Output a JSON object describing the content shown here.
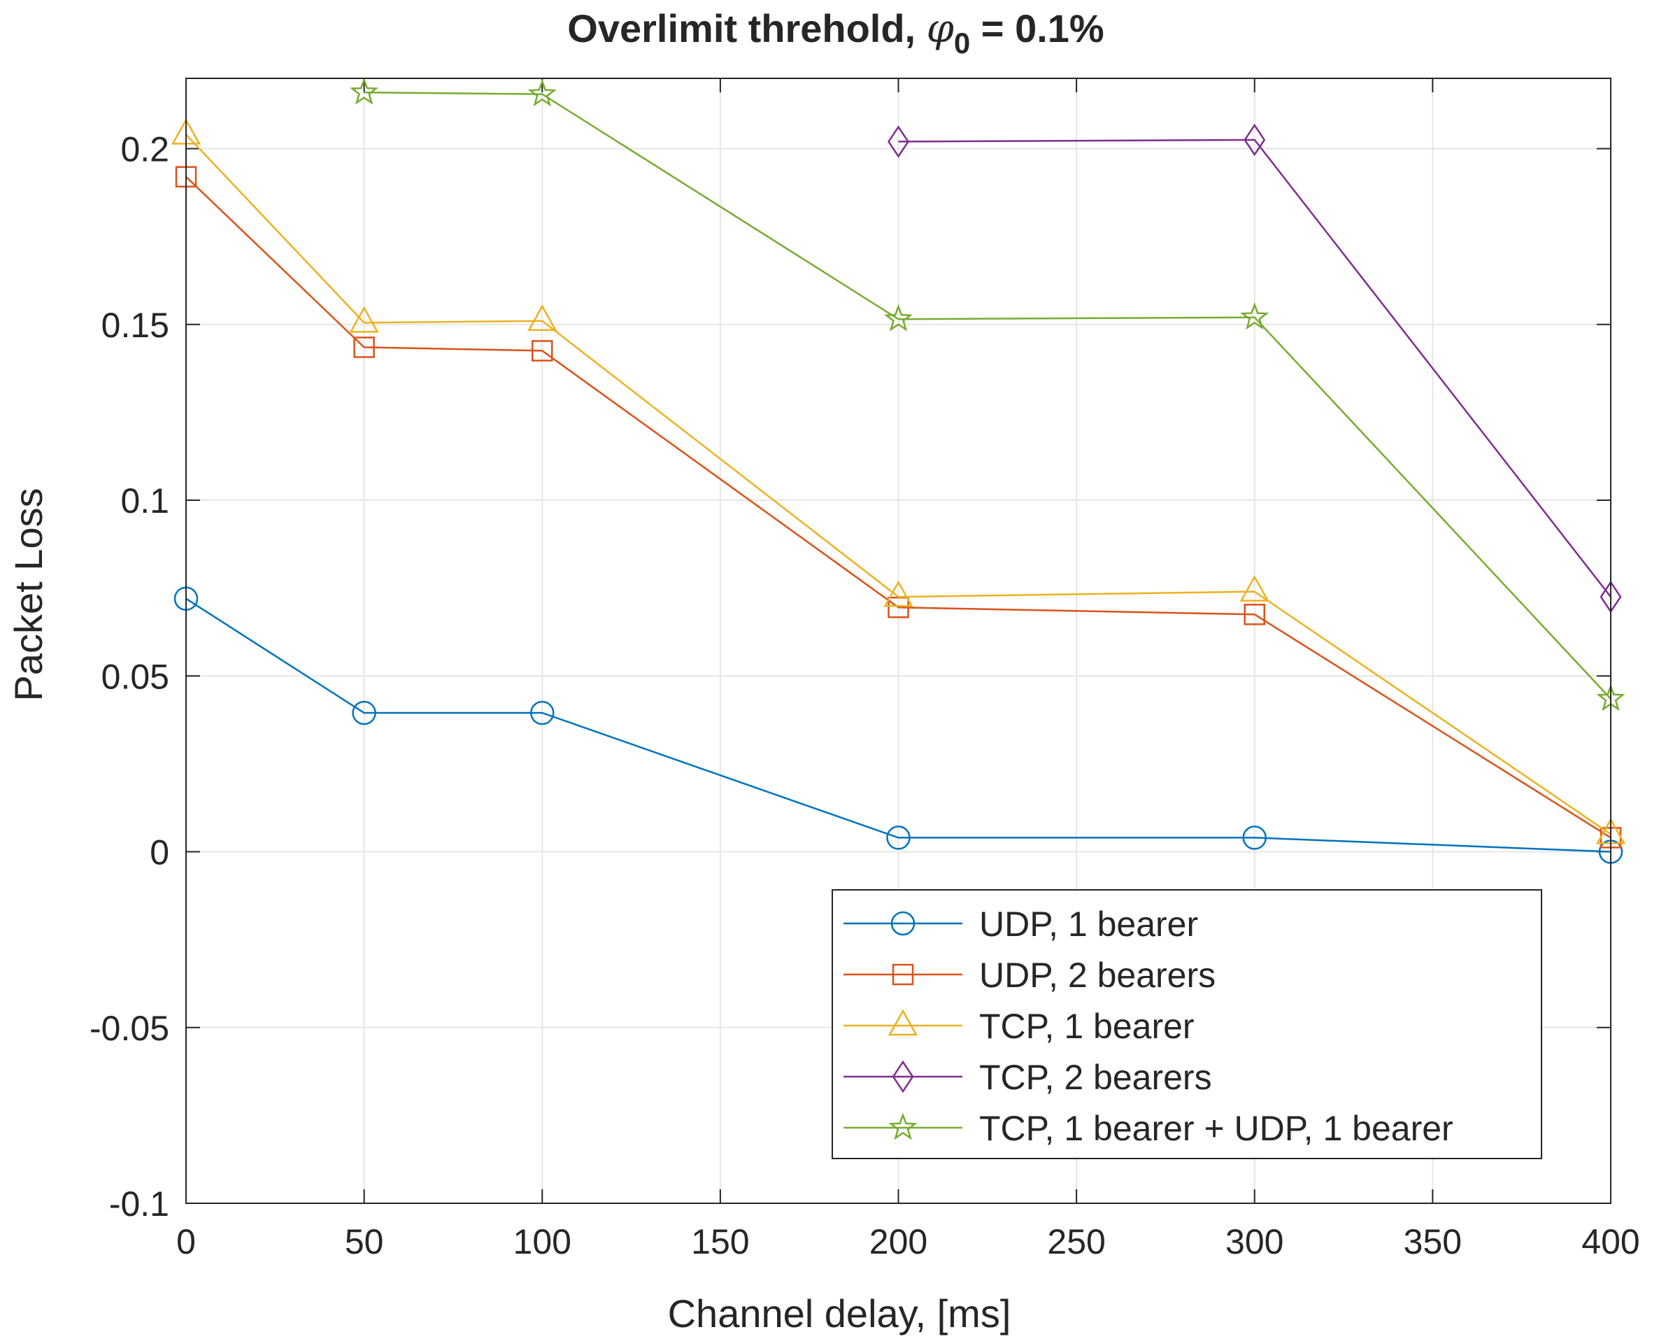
{
  "chart_data": {
    "type": "line",
    "title_prefix": "Overlimit threhold, ",
    "title_symbol": "φ",
    "title_subscript": "0",
    "title_suffix": " = 0.1%",
    "xlabel": "Channel delay, [ms]",
    "ylabel": "Packet Loss",
    "xlim": [
      0,
      400
    ],
    "ylim": [
      -0.1,
      0.22
    ],
    "xticks": [
      0,
      50,
      100,
      150,
      200,
      250,
      300,
      350,
      400
    ],
    "xtick_labels": [
      "0",
      "50",
      "100",
      "150",
      "200",
      "250",
      "300",
      "350",
      "400"
    ],
    "yticks": [
      -0.1,
      -0.05,
      0,
      0.05,
      0.1,
      0.15,
      0.2
    ],
    "ytick_labels": [
      "-0.1",
      "-0.05",
      "0",
      "0.05",
      "0.1",
      "0.15",
      "0.2"
    ],
    "grid": true,
    "legend_position": "bottom-right",
    "series": [
      {
        "name": "UDP, 1 bearer",
        "marker": "circle",
        "color": "#0072BD",
        "x": [
          0,
          50,
          100,
          200,
          300,
          400
        ],
        "y": [
          0.072,
          0.0395,
          0.0395,
          0.004,
          0.004,
          0.0
        ]
      },
      {
        "name": "UDP, 2 bearers",
        "marker": "square",
        "color": "#D95319",
        "x": [
          0,
          50,
          100,
          200,
          300,
          400
        ],
        "y": [
          0.192,
          0.1435,
          0.1425,
          0.0695,
          0.0675,
          0.004
        ]
      },
      {
        "name": "TCP, 1 bearer",
        "marker": "triangle",
        "color": "#EDB120",
        "x": [
          0,
          50,
          100,
          200,
          300,
          400
        ],
        "y": [
          0.204,
          0.1505,
          0.151,
          0.0725,
          0.074,
          0.005
        ]
      },
      {
        "name": "TCP, 2 bearers",
        "marker": "diamond",
        "color": "#7E2F8E",
        "x": [
          200,
          300,
          400
        ],
        "y": [
          0.202,
          0.2025,
          0.0725
        ]
      },
      {
        "name": "TCP, 1 bearer + UDP, 1 bearer",
        "marker": "star",
        "color": "#77AC30",
        "x": [
          50,
          100,
          200,
          300,
          400
        ],
        "y": [
          0.216,
          0.2155,
          0.1515,
          0.152,
          0.0435
        ]
      }
    ]
  }
}
